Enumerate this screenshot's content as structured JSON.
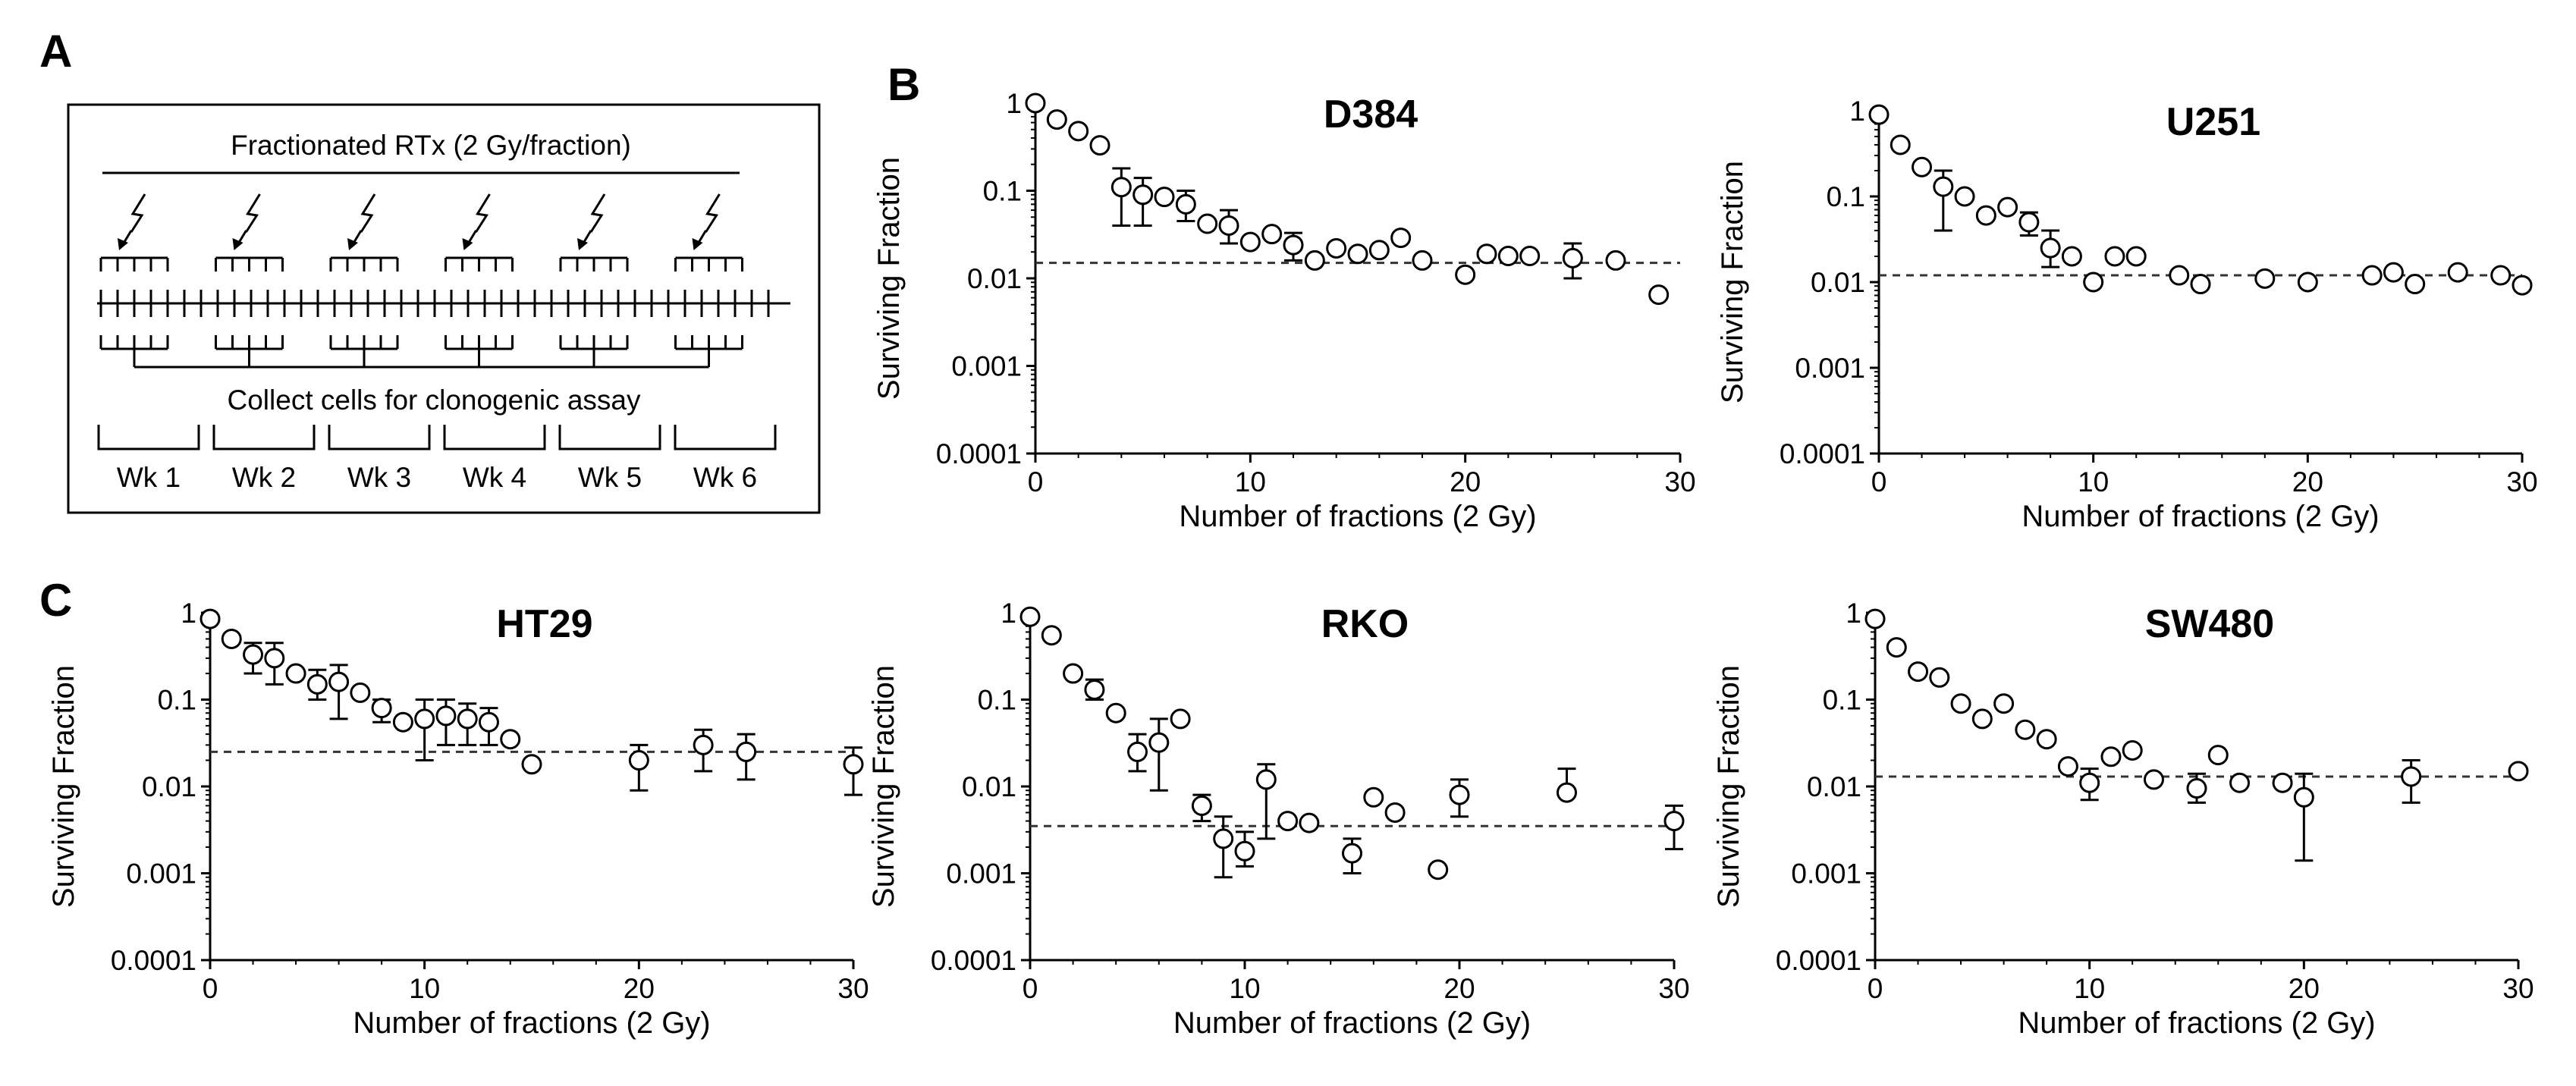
{
  "panel_labels": {
    "a": "A",
    "b": "B",
    "c": "C"
  },
  "schema": {
    "title": "Fractionated RTx (2 Gy/fraction)",
    "collect_label": "Collect cells for clonogenic assay",
    "weeks": [
      "Wk 1",
      "Wk 2",
      "Wk 3",
      "Wk 4",
      "Wk 5",
      "Wk 6"
    ],
    "icon": "lightning-bolt-icon"
  },
  "colors": {
    "marker_stroke": "#000000",
    "marker_fill": "#ffffff",
    "axis": "#000000",
    "threshold_line": "#333333"
  },
  "chart_data": [
    {
      "type": "scatter",
      "title": "D384",
      "xlabel": "Number of fractions (2 Gy)",
      "ylabel": "Surviving Fraction",
      "xlim": [
        0,
        30
      ],
      "x_ticks": [
        0,
        10,
        20,
        30
      ],
      "ylim": [
        0.0001,
        1
      ],
      "y_scale": "log",
      "y_ticks": [
        1,
        0.1,
        0.01,
        0.001,
        0.0001
      ],
      "y_tick_labels": [
        "1",
        "0.1",
        "0.01",
        "0.001",
        "0.0001"
      ],
      "threshold": 0.015,
      "x": [
        0,
        1,
        2,
        3,
        4,
        5,
        6,
        7,
        8,
        9,
        10,
        11,
        12,
        13,
        14,
        15,
        16,
        17,
        18,
        20,
        21,
        22,
        23,
        25,
        27,
        29
      ],
      "y": [
        1.0,
        0.65,
        0.48,
        0.33,
        0.11,
        0.09,
        0.085,
        0.07,
        0.042,
        0.04,
        0.026,
        0.032,
        0.024,
        0.016,
        0.022,
        0.019,
        0.021,
        0.029,
        0.016,
        0.011,
        0.019,
        0.018,
        0.018,
        0.017,
        0.016,
        0.0065
      ],
      "error_bars": [
        {
          "x": 4,
          "low": 0.04,
          "high": 0.18
        },
        {
          "x": 5,
          "low": 0.04,
          "high": 0.14
        },
        {
          "x": 7,
          "low": 0.045,
          "high": 0.1
        },
        {
          "x": 9,
          "low": 0.025,
          "high": 0.06
        },
        {
          "x": 12,
          "low": 0.016,
          "high": 0.033
        },
        {
          "x": 25,
          "low": 0.01,
          "high": 0.025
        }
      ]
    },
    {
      "type": "scatter",
      "title": "U251",
      "xlabel": "Number of fractions (2 Gy)",
      "ylabel": "Surviving Fraction",
      "xlim": [
        0,
        30
      ],
      "x_ticks": [
        0,
        10,
        20,
        30
      ],
      "ylim": [
        0.0001,
        1
      ],
      "y_scale": "log",
      "y_ticks": [
        1,
        0.1,
        0.01,
        0.001,
        0.0001
      ],
      "y_tick_labels": [
        "1",
        "0.1",
        "0.01",
        "0.001",
        "0.0001"
      ],
      "threshold": 0.012,
      "x": [
        0,
        1,
        2,
        3,
        4,
        5,
        6,
        7,
        8,
        9,
        10,
        11,
        12,
        14,
        15,
        18,
        20,
        23,
        24,
        25,
        27,
        29,
        30
      ],
      "y": [
        0.9,
        0.4,
        0.22,
        0.13,
        0.1,
        0.06,
        0.075,
        0.05,
        0.025,
        0.02,
        0.01,
        0.02,
        0.02,
        0.012,
        0.0095,
        0.011,
        0.01,
        0.012,
        0.013,
        0.0095,
        0.013,
        0.012,
        0.0092
      ],
      "error_bars": [
        {
          "x": 3,
          "low": 0.04,
          "high": 0.2
        },
        {
          "x": 7,
          "low": 0.035,
          "high": 0.065
        },
        {
          "x": 8,
          "low": 0.015,
          "high": 0.04
        }
      ]
    },
    {
      "type": "scatter",
      "title": "HT29",
      "xlabel": "Number of fractions (2 Gy)",
      "ylabel": "Surviving Fraction",
      "xlim": [
        0,
        30
      ],
      "x_ticks": [
        0,
        10,
        20,
        30
      ],
      "ylim": [
        0.0001,
        1
      ],
      "y_scale": "log",
      "y_ticks": [
        1,
        0.1,
        0.01,
        0.001,
        0.0001
      ],
      "y_tick_labels": [
        "1",
        "0.1",
        "0.01",
        "0.001",
        "0.0001"
      ],
      "threshold": 0.025,
      "x": [
        0,
        1,
        2,
        3,
        4,
        5,
        6,
        7,
        8,
        9,
        10,
        11,
        12,
        13,
        14,
        15,
        20,
        23,
        25,
        30
      ],
      "y": [
        0.85,
        0.5,
        0.33,
        0.3,
        0.2,
        0.15,
        0.16,
        0.12,
        0.08,
        0.055,
        0.06,
        0.065,
        0.06,
        0.055,
        0.035,
        0.018,
        0.02,
        0.03,
        0.025,
        0.018
      ],
      "error_bars": [
        {
          "x": 2,
          "low": 0.2,
          "high": 0.45
        },
        {
          "x": 3,
          "low": 0.15,
          "high": 0.45
        },
        {
          "x": 5,
          "low": 0.1,
          "high": 0.22
        },
        {
          "x": 6,
          "low": 0.06,
          "high": 0.25
        },
        {
          "x": 8,
          "low": 0.055,
          "high": 0.1
        },
        {
          "x": 10,
          "low": 0.02,
          "high": 0.1
        },
        {
          "x": 11,
          "low": 0.03,
          "high": 0.1
        },
        {
          "x": 12,
          "low": 0.03,
          "high": 0.09
        },
        {
          "x": 13,
          "low": 0.03,
          "high": 0.08
        },
        {
          "x": 20,
          "low": 0.009,
          "high": 0.03
        },
        {
          "x": 23,
          "low": 0.015,
          "high": 0.045
        },
        {
          "x": 25,
          "low": 0.012,
          "high": 0.04
        },
        {
          "x": 30,
          "low": 0.008,
          "high": 0.028
        }
      ]
    },
    {
      "type": "scatter",
      "title": "RKO",
      "xlabel": "Number of fractions (2 Gy)",
      "ylabel": "Surviving Fraction",
      "xlim": [
        0,
        30
      ],
      "x_ticks": [
        0,
        10,
        20,
        30
      ],
      "ylim": [
        0.0001,
        1
      ],
      "y_scale": "log",
      "y_ticks": [
        1,
        0.1,
        0.01,
        0.001,
        0.0001
      ],
      "y_tick_labels": [
        "1",
        "0.1",
        "0.01",
        "0.001",
        "0.0001"
      ],
      "threshold": 0.0035,
      "x": [
        0,
        1,
        2,
        3,
        4,
        5,
        6,
        7,
        8,
        9,
        10,
        11,
        12,
        13,
        15,
        16,
        17,
        19,
        20,
        25,
        30
      ],
      "y": [
        0.9,
        0.55,
        0.2,
        0.13,
        0.07,
        0.025,
        0.032,
        0.06,
        0.006,
        0.0025,
        0.0018,
        0.012,
        0.004,
        0.0038,
        0.0017,
        0.0075,
        0.005,
        0.0011,
        0.008,
        0.0085,
        0.004
      ],
      "error_bars": [
        {
          "x": 3,
          "low": 0.1,
          "high": 0.17
        },
        {
          "x": 5,
          "low": 0.015,
          "high": 0.04
        },
        {
          "x": 6,
          "low": 0.009,
          "high": 0.06
        },
        {
          "x": 8,
          "low": 0.004,
          "high": 0.008
        },
        {
          "x": 9,
          "low": 0.0009,
          "high": 0.0045
        },
        {
          "x": 10,
          "low": 0.0012,
          "high": 0.003
        },
        {
          "x": 11,
          "low": 0.0025,
          "high": 0.018
        },
        {
          "x": 15,
          "low": 0.001,
          "high": 0.0025
        },
        {
          "x": 20,
          "low": 0.0045,
          "high": 0.012
        },
        {
          "x": 25,
          "low": 0.0085,
          "high": 0.016
        },
        {
          "x": 30,
          "low": 0.0019,
          "high": 0.006
        }
      ]
    },
    {
      "type": "scatter",
      "title": "SW480",
      "xlabel": "Number of fractions (2 Gy)",
      "ylabel": "Surviving Fraction",
      "xlim": [
        0,
        30
      ],
      "x_ticks": [
        0,
        10,
        20,
        30
      ],
      "ylim": [
        0.0001,
        1
      ],
      "y_scale": "log",
      "y_ticks": [
        1,
        0.1,
        0.01,
        0.001,
        0.0001
      ],
      "y_tick_labels": [
        "1",
        "0.1",
        "0.01",
        "0.001",
        "0.0001"
      ],
      "threshold": 0.013,
      "x": [
        0,
        1,
        2,
        3,
        4,
        5,
        6,
        7,
        8,
        9,
        10,
        11,
        12,
        13,
        15,
        16,
        17,
        19,
        20,
        25,
        30
      ],
      "y": [
        0.85,
        0.4,
        0.21,
        0.18,
        0.09,
        0.06,
        0.09,
        0.045,
        0.035,
        0.017,
        0.011,
        0.022,
        0.026,
        0.012,
        0.0095,
        0.023,
        0.011,
        0.011,
        0.0075,
        0.013,
        0.015
      ],
      "error_bars": [
        {
          "x": 10,
          "low": 0.007,
          "high": 0.016
        },
        {
          "x": 15,
          "low": 0.0065,
          "high": 0.014
        },
        {
          "x": 20,
          "low": 0.0014,
          "high": 0.014
        },
        {
          "x": 25,
          "low": 0.0065,
          "high": 0.02
        }
      ]
    }
  ]
}
